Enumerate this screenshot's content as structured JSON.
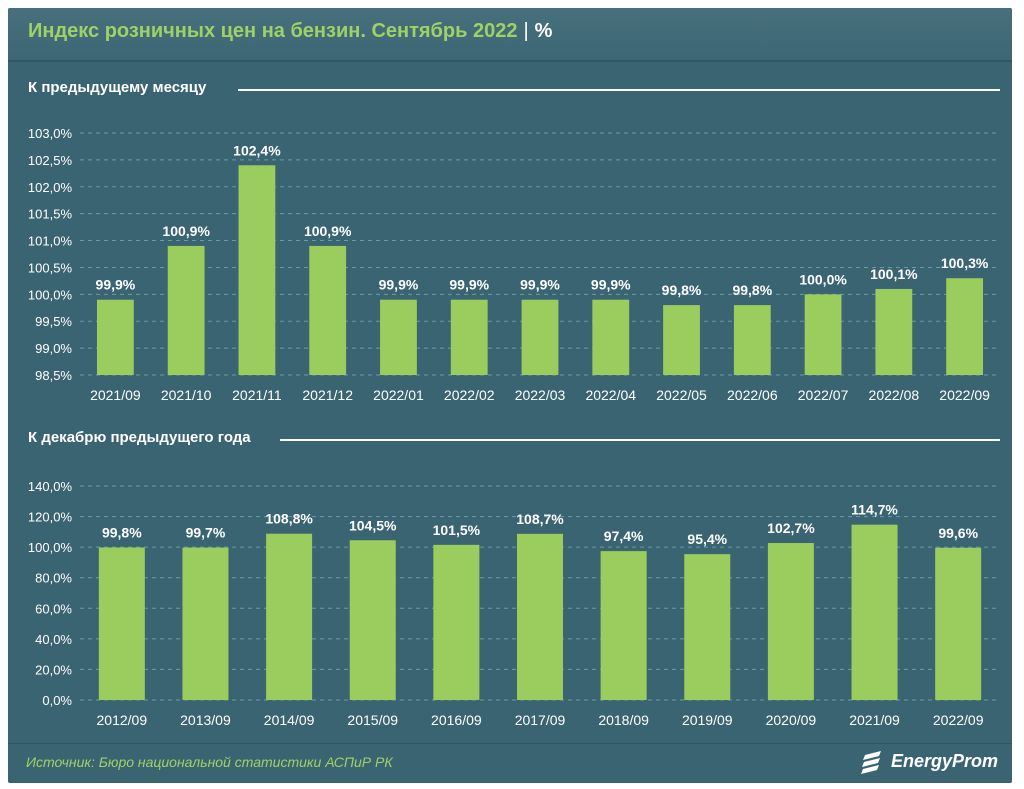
{
  "header": {
    "title": "Индекс розничных цен на бензин. Сентябрь 2022",
    "separator": "|",
    "unit": "%"
  },
  "colors": {
    "background": "#3a6472",
    "bar": "#9bcc5e",
    "title": "#9fd166",
    "text": "#ffffff",
    "grid": "#6d9aa6"
  },
  "chart_data": [
    {
      "type": "bar",
      "title": "К предыдущему месяцу",
      "categories": [
        "2021/09",
        "2021/10",
        "2021/11",
        "2021/12",
        "2022/01",
        "2022/02",
        "2022/03",
        "2022/04",
        "2022/05",
        "2022/06",
        "2022/07",
        "2022/08",
        "2022/09"
      ],
      "values": [
        99.9,
        100.9,
        102.4,
        100.9,
        99.9,
        99.9,
        99.9,
        99.9,
        99.8,
        99.8,
        100.0,
        100.1,
        100.3
      ],
      "labels": [
        "99,9%",
        "100,9%",
        "102,4%",
        "100,9%",
        "99,9%",
        "99,9%",
        "99,9%",
        "99,9%",
        "99,8%",
        "99,8%",
        "100,0%",
        "100,1%",
        "100,3%"
      ],
      "yticks": [
        "98,5%",
        "99,0%",
        "99,5%",
        "100,0%",
        "100,5%",
        "101,0%",
        "101,5%",
        "102,0%",
        "102,5%",
        "103,0%"
      ],
      "ylim": [
        98.5,
        103.0
      ],
      "grid": true
    },
    {
      "type": "bar",
      "title": "К декабрю предыдущего года",
      "categories": [
        "2012/09",
        "2013/09",
        "2014/09",
        "2015/09",
        "2016/09",
        "2017/09",
        "2018/09",
        "2019/09",
        "2020/09",
        "2021/09",
        "2022/09"
      ],
      "values": [
        99.8,
        99.7,
        108.8,
        104.5,
        101.5,
        108.7,
        97.4,
        95.4,
        102.7,
        114.7,
        99.6
      ],
      "labels": [
        "99,8%",
        "99,7%",
        "108,8%",
        "104,5%",
        "101,5%",
        "108,7%",
        "97,4%",
        "95,4%",
        "102,7%",
        "114,7%",
        "99,6%"
      ],
      "yticks": [
        "0,0%",
        "20,0%",
        "40,0%",
        "60,0%",
        "80,0%",
        "100,0%",
        "120,0%",
        "140,0%"
      ],
      "ylim": [
        0,
        140
      ],
      "grid": true
    }
  ],
  "footer": {
    "source": "Источник: Бюро национальной статистики АСПиР РК",
    "brand": "EnergyProm",
    "logo_icon": "energyprom-logo-icon"
  }
}
